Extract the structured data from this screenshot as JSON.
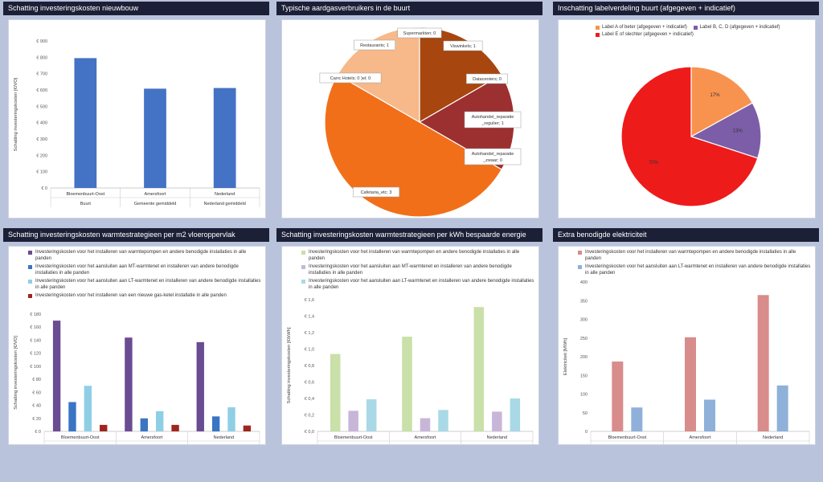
{
  "colors": {
    "background": "#b9c3dc",
    "title_bar": "#1c2036",
    "blue": "#4472c4",
    "purple": "#6a4c93",
    "mid_blue": "#3a75c4",
    "light_blue": "#8fcfe6",
    "dark_red": "#a0251f"
  },
  "panels": [
    {
      "title": "Schatting investeringskosten nieuwbouw"
    },
    {
      "title": "Typische aardgasverbruikers in de buurt"
    },
    {
      "title": "Inschatting labelverdeling buurt (afgegeven + indicatief)"
    },
    {
      "title": "Schatting investeringskosten warmtestrategieen per m2 vloeroppervlak"
    },
    {
      "title": "Schatting investeringskosten warmtestrategieen per kWh bespaarde energie"
    },
    {
      "title": "Extra benodigde elektriciteit"
    }
  ],
  "chart_data": [
    {
      "type": "bar",
      "title": "Schatting investeringskosten nieuwbouw",
      "ylabel": "Schatting investeringskosten [€/VO]",
      "ylim": [
        0,
        900
      ],
      "yticks": [
        "€ 0",
        "€ 100",
        "€ 200",
        "€ 300",
        "€ 400",
        "€ 500",
        "€ 600",
        "€ 700",
        "€ 800",
        "€ 900"
      ],
      "categories": [
        "Bloemenbuurt-Oost",
        "Amersfoort",
        "Nederland"
      ],
      "groups": [
        "Buurt",
        "Gemeente gemiddeld",
        "Nederland gemiddeld"
      ],
      "series": [
        {
          "values": [
            795,
            608,
            612
          ],
          "color": "#4472c4"
        }
      ]
    },
    {
      "type": "pie",
      "title": "Typische aardgasverbruikers in de buurt",
      "slices": [
        {
          "label": "Supermarkten; 0",
          "value": 0,
          "color": "#7a3a12"
        },
        {
          "label": "Viswinkels; 1",
          "value": 1,
          "color": "#a8460f"
        },
        {
          "label": "Datacenters; 0",
          "value": 0,
          "color": "#b04a1b"
        },
        {
          "label": "Autohandel_reparatie _regulier; 1",
          "value": 1,
          "color": "#9c3030"
        },
        {
          "label": "Autohandel_reparatie _zwaar; 0",
          "value": 0,
          "color": "#b03838"
        },
        {
          "label": "Cafetaria_etc; 3",
          "value": 3,
          "color": "#f26f1a"
        },
        {
          "label": "Carrc Hotels; 0 )el; 0",
          "value": 0,
          "color": "#f9a867"
        },
        {
          "label": "Restaurants; 1",
          "value": 1,
          "color": "#f7b98a"
        }
      ]
    },
    {
      "type": "pie",
      "title": "Inschatting labelverdeling buurt (afgegeven + indicatief)",
      "legend": [
        "Label A of beter (afgegeven + indicatief)",
        "Label B, C, D (afgegeven + indicatief)",
        "Label E of slechter (afgegeven + indicatief)"
      ],
      "slices": [
        {
          "label": "17%",
          "value": 17,
          "color": "#f7934f"
        },
        {
          "label": "13%",
          "value": 13,
          "color": "#7b5ea7"
        },
        {
          "label": "70%",
          "value": 70,
          "color": "#ee1b1b"
        }
      ]
    },
    {
      "type": "bar",
      "title": "Schatting investeringskosten warmtestrategieen per m2 vloeroppervlak",
      "ylabel": "Schatting investeringskosten [€/VO]",
      "ylim": [
        0,
        180
      ],
      "yticks": [
        "€ 0",
        "€ 20",
        "€ 40",
        "€ 60",
        "€ 80",
        "€ 100",
        "€ 120",
        "€ 140",
        "€ 160",
        "€ 180"
      ],
      "categories": [
        "Bloemenbuurt-Oost",
        "Amersfoort",
        "Nederland"
      ],
      "groups": [
        "Buurt",
        "Gemeente gemiddeld",
        "Nederland gemiddeld"
      ],
      "legend": [
        "Investeringskosten voor het installeren van warmtepompen en andere benodigde installaties in alle panden",
        "Investeringskosten voor het aansluiten aan MT-warmtenet en installeren van andere benodigde installaties in alle panden",
        "Investeringskosten voor het aansluiten aan LT-warmtenet en installeren van andere benodigde installaties in alle panden",
        "Investeringskosten voor het installeren van een nieuwe gas-ketel installatie in alle panden"
      ],
      "series": [
        {
          "values": [
            170,
            144,
            137
          ],
          "color": "#6a4c93"
        },
        {
          "values": [
            45,
            20,
            23
          ],
          "color": "#3a75c4"
        },
        {
          "values": [
            70,
            31,
            37
          ],
          "color": "#8fcfe6"
        },
        {
          "values": [
            10,
            10,
            9
          ],
          "color": "#a0251f"
        }
      ]
    },
    {
      "type": "bar",
      "title": "Schatting investeringskosten warmtestrategieen per kWh bespaarde energie",
      "ylabel": "Schatting investeringskosten [€/kWh]",
      "ylim": [
        0,
        1.6
      ],
      "yticks": [
        "€ 0,0",
        "€ 0,2",
        "€ 0,4",
        "€ 0,6",
        "€ 0,8",
        "€ 1,0",
        "€ 1,2",
        "€ 1,4",
        "€ 1,6"
      ],
      "categories": [
        "Bloemenbuurt-Oost",
        "Amersfoort",
        "Nederland"
      ],
      "groups": [
        "Buurt",
        "Gemeente gemiddeld",
        "Nederland gemiddeld"
      ],
      "legend": [
        "Investeringskosten voor het installeren van warmtepompen en andere benodigde installaties in alle panden",
        "Investeringskosten voor het aansluiten aan MT-warmtenet en installeren van andere benodigde installaties in alle panden",
        "Investeringskosten voor het aansluiten aan LT-warmtenet en installeren van andere benodigde installaties in alle panden"
      ],
      "series": [
        {
          "values": [
            0.94,
            1.15,
            1.51
          ],
          "color": "#c9e0a8"
        },
        {
          "values": [
            0.25,
            0.16,
            0.24
          ],
          "color": "#c8b6d9"
        },
        {
          "values": [
            0.39,
            0.26,
            0.4
          ],
          "color": "#a9d9e6"
        }
      ]
    },
    {
      "type": "bar",
      "title": "Extra benodigde elektriciteit",
      "ylabel": "Elektriciteit [MWh]",
      "ylim": [
        0,
        400
      ],
      "yticks": [
        "0",
        "50",
        "100",
        "150",
        "200",
        "250",
        "300",
        "350",
        "400"
      ],
      "categories": [
        "Bloemenbuurt-Oost",
        "Amersfoort",
        "Nederland"
      ],
      "groups": [
        "Buurt",
        "Gemeente gemiddeld",
        "Nederland gemiddeld"
      ],
      "legend": [
        "Investeringskosten voor het installeren van warmtepompen en andere benodigde installaties in alle panden",
        "Investeringskosten voor het aansluiten aan LT-warmtenet en installeren van andere benodigde installaties in alle panden"
      ],
      "series": [
        {
          "values": [
            187,
            252,
            365
          ],
          "color": "#d98c8c"
        },
        {
          "values": [
            64,
            85,
            123
          ],
          "color": "#8fb0d9"
        }
      ]
    }
  ]
}
